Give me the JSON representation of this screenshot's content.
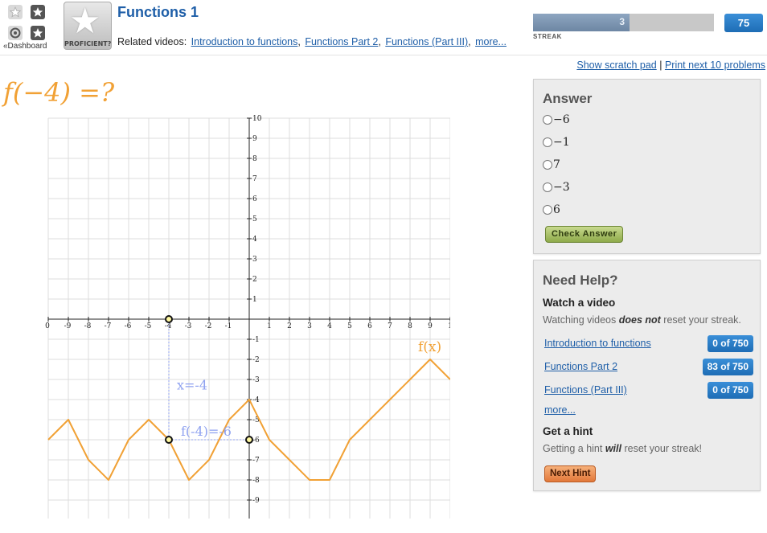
{
  "nav": {
    "dashboard_label": "«Dashboard"
  },
  "badge": {
    "label": "PROFICIENT?"
  },
  "exercise": {
    "title": "Functions 1",
    "related_label": "Related videos:",
    "related_videos": [
      "Introduction to functions",
      "Functions Part 2",
      "Functions (Part III)"
    ],
    "more_label": "more..."
  },
  "streak": {
    "value": "3",
    "label": "STREAK",
    "progress_fraction": 0.533,
    "score": "75"
  },
  "links": {
    "scratch_pad": "Show scratch pad",
    "separator": "|",
    "print": "Print next 10 problems"
  },
  "question": {
    "text": "f(−4) =?"
  },
  "chart_data": {
    "type": "line",
    "xlim": [
      -10,
      10
    ],
    "ylim": [
      -10,
      10
    ],
    "grid": true,
    "x_ticks": [
      "0",
      "-9",
      "-8",
      "-7",
      "-6",
      "-5",
      "-4",
      "-3",
      "-2",
      "-1",
      "1",
      "2",
      "3",
      "4",
      "5",
      "6",
      "7",
      "8",
      "9",
      "1"
    ],
    "y_ticks": [
      "10",
      "9",
      "8",
      "7",
      "6",
      "5",
      "4",
      "3",
      "2",
      "1",
      "-1",
      "-2",
      "-3",
      "-4",
      "-5",
      "-6",
      "-7",
      "-8",
      "-9"
    ],
    "series": [
      {
        "name": "f(x)",
        "color": "#f1a135",
        "x": [
          -10,
          -9,
          -8,
          -7,
          -6,
          -5,
          -4,
          -3,
          -2,
          -1,
          0,
          1,
          2,
          3,
          4,
          5,
          6,
          7,
          8,
          9,
          10
        ],
        "y": [
          -6,
          -5,
          -7,
          -8,
          -6,
          -5,
          -6,
          -8,
          -7,
          -5,
          -4,
          -6,
          -7,
          -8,
          -8,
          -6,
          -5,
          -4,
          -3,
          -2,
          -3
        ]
      }
    ],
    "annotations": [
      {
        "text": "x=-4",
        "color": "#8fa2f0"
      },
      {
        "text": "f(-4)=-6",
        "color": "#8fa2f0"
      }
    ],
    "highlight_points": [
      {
        "x": -4,
        "y": 0
      },
      {
        "x": -4,
        "y": -6
      },
      {
        "x": 0,
        "y": -6
      }
    ]
  },
  "answer": {
    "heading": "Answer",
    "options": [
      "−6",
      "−1",
      "7",
      "−3",
      "6"
    ],
    "check_label": "Check Answer"
  },
  "help": {
    "heading": "Need Help?",
    "watch_heading": "Watch a video",
    "watch_note_pre": "Watching videos ",
    "watch_note_em": "does not",
    "watch_note_post": " reset your streak.",
    "videos": [
      {
        "title": "Introduction to functions",
        "progress": "0 of 750"
      },
      {
        "title": "Functions Part 2",
        "progress": "83 of 750"
      },
      {
        "title": "Functions (Part III)",
        "progress": "0 of 750"
      }
    ],
    "more_label": "more...",
    "hint_heading": "Get a hint",
    "hint_note_pre": "Getting a hint ",
    "hint_note_em": "will",
    "hint_note_post": " reset your streak!",
    "hint_label": "Next Hint"
  },
  "colors": {
    "accent": "#1f5fa8",
    "function": "#f1a135",
    "annotation": "#8fa2f0"
  }
}
